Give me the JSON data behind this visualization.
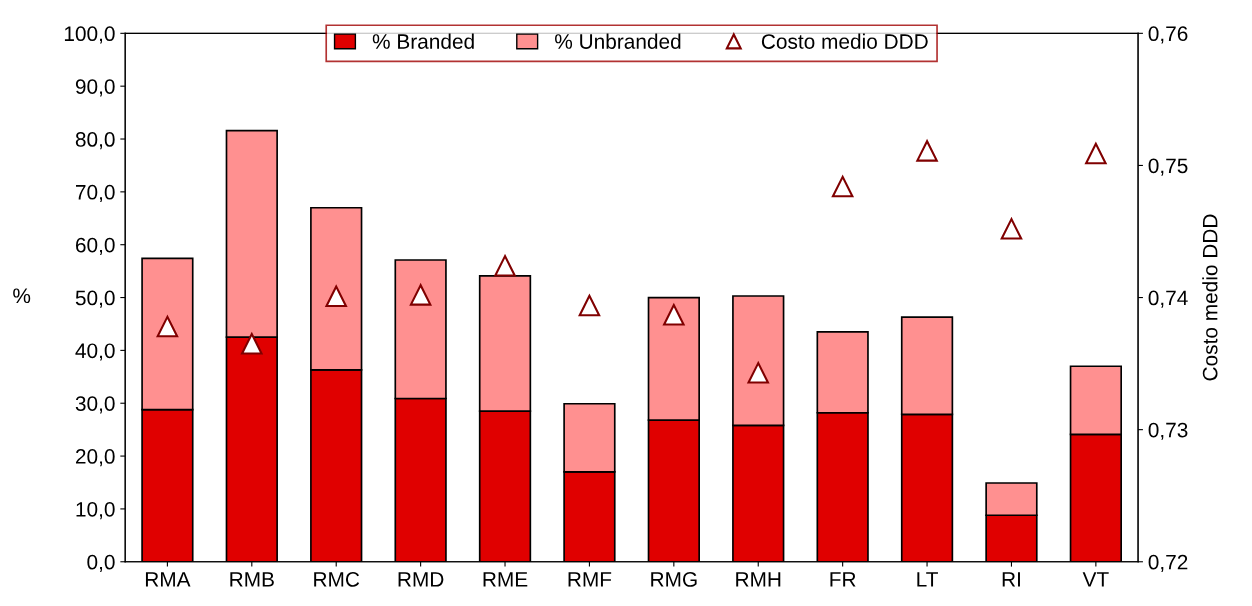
{
  "chart_data": {
    "type": "bar",
    "stacked": true,
    "ylabel": "%",
    "y2label": "Costo medio DDD",
    "categories": [
      "RMA",
      "RMB",
      "RMC",
      "RMD",
      "RME",
      "RMF",
      "RMG",
      "RMH",
      "FR",
      "LT",
      "RI",
      "VT"
    ],
    "series": [
      {
        "name": "% Branded",
        "color": "#e00000",
        "values": [
          28.8,
          42.5,
          36.3,
          30.9,
          28.5,
          17.0,
          26.8,
          25.8,
          28.2,
          27.9,
          8.8,
          24.1
        ]
      },
      {
        "name": "% Unbranded",
        "color": "#ff9090",
        "values": [
          28.6,
          39.1,
          30.7,
          26.2,
          25.6,
          12.9,
          23.2,
          24.5,
          15.3,
          18.4,
          6.1,
          12.9
        ]
      },
      {
        "name": "Costo medio DDD",
        "type": "scatter",
        "axis": "y2",
        "marker": "triangle",
        "color": "#800000",
        "values": [
          0.7378,
          0.7365,
          0.7401,
          0.7402,
          0.7424,
          0.7394,
          0.7387,
          0.7343,
          0.7484,
          0.7511,
          0.7452,
          0.7509
        ]
      }
    ],
    "ylim": [
      0,
      100
    ],
    "yticks": [
      {
        "value": 0,
        "label": "0,0"
      },
      {
        "value": 10,
        "label": "10,0"
      },
      {
        "value": 20,
        "label": "20,0"
      },
      {
        "value": 30,
        "label": "30,0"
      },
      {
        "value": 40,
        "label": "40,0"
      },
      {
        "value": 50,
        "label": "50,0"
      },
      {
        "value": 60,
        "label": "60,0"
      },
      {
        "value": 70,
        "label": "70,0"
      },
      {
        "value": 80,
        "label": "80,0"
      },
      {
        "value": 90,
        "label": "90,0"
      },
      {
        "value": 100,
        "label": "100,0"
      }
    ],
    "y2lim": [
      0.72,
      0.76
    ],
    "y2ticks": [
      {
        "value": 0.72,
        "label": "0,72"
      },
      {
        "value": 0.73,
        "label": "0,73"
      },
      {
        "value": 0.74,
        "label": "0,74"
      },
      {
        "value": 0.75,
        "label": "0,75"
      },
      {
        "value": 0.76,
        "label": "0,76"
      }
    ],
    "legend": "top",
    "grid": false
  }
}
